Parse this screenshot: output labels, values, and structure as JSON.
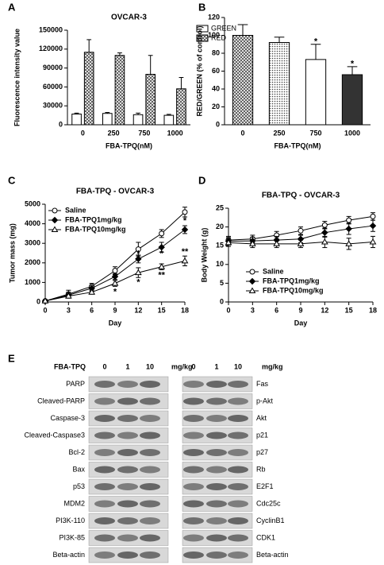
{
  "chart_data": [
    {
      "type": "bar",
      "panel_label": "A",
      "title": "OVCAR-3",
      "x_label": "FBA-TPQ(nM)",
      "y_label": "Fluorescence intensity value",
      "categories": [
        "0",
        "250",
        "750",
        "1000"
      ],
      "series": [
        {
          "name": "GREEN",
          "color": "#ffffff",
          "pattern": null,
          "values": [
            17000,
            18000,
            16000,
            15000
          ],
          "errors": [
            1500,
            1500,
            2500,
            1500
          ]
        },
        {
          "name": "RED",
          "color": "#ffffff",
          "pattern": "crosshatch",
          "values": [
            115000,
            110000,
            80000,
            57000
          ],
          "errors": [
            20000,
            4000,
            30000,
            18000
          ]
        }
      ],
      "ylim": [
        0,
        150000
      ],
      "yticks": [
        0,
        30000,
        60000,
        90000,
        120000,
        150000
      ],
      "legend": "right"
    },
    {
      "type": "bar",
      "panel_label": "B",
      "x_label": "FBA-TPQ(nM)",
      "y_label": "RED/GREEN (% of control)",
      "categories": [
        "0",
        "250",
        "750",
        "1000"
      ],
      "values": [
        100,
        92,
        73,
        56
      ],
      "errors": [
        12,
        6,
        17,
        9
      ],
      "colors": [
        "#ffffff",
        "#ffffff",
        "#ffffff",
        "#333333"
      ],
      "patterns": [
        "crosshatch",
        "dots",
        null,
        null
      ],
      "annotations": [
        {
          "text": "*",
          "x": "750",
          "y": 93
        },
        {
          "text": "*",
          "x": "1000",
          "y": 68
        }
      ],
      "ylim": [
        0,
        120
      ],
      "yticks": [
        0,
        20,
        40,
        60,
        80,
        100,
        120
      ]
    },
    {
      "type": "line",
      "panel_label": "C",
      "title": "FBA-TPQ - OVCAR-3",
      "x_label": "Day",
      "y_label": "Tumor mass (mg)",
      "x": [
        0,
        3,
        6,
        9,
        12,
        15,
        18
      ],
      "series": [
        {
          "name": "Saline",
          "color": "#000000",
          "marker": "circle",
          "filled": false,
          "values": [
            50,
            400,
            800,
            1600,
            2700,
            3500,
            4600
          ],
          "errors": [
            50,
            200,
            150,
            200,
            350,
            200,
            250
          ]
        },
        {
          "name": "FBA-TPQ1mg/kg",
          "color": "#000000",
          "marker": "diamond",
          "filled": true,
          "values": [
            50,
            350,
            700,
            1300,
            2200,
            2800,
            3700
          ],
          "errors": [
            30,
            150,
            150,
            150,
            200,
            250,
            200
          ]
        },
        {
          "name": "FBA-TPQ10mg/kg",
          "color": "#000000",
          "marker": "triangle",
          "filled": false,
          "values": [
            50,
            300,
            500,
            950,
            1500,
            1800,
            2100
          ],
          "errors": [
            30,
            100,
            100,
            150,
            250,
            150,
            250
          ]
        }
      ],
      "annotations": [
        {
          "text": "*",
          "x": 9,
          "y": 500
        },
        {
          "text": "*",
          "x": 12,
          "y": 2450
        },
        {
          "text": "*",
          "x": 12,
          "y": 1000
        },
        {
          "text": "*",
          "x": 15,
          "y": 2450
        },
        {
          "text": "**",
          "x": 15,
          "y": 1350
        },
        {
          "text": "*",
          "x": 18,
          "y": 4150
        },
        {
          "text": "**",
          "x": 18,
          "y": 2550
        }
      ],
      "xlim": [
        0,
        18
      ],
      "xticks": [
        0,
        3,
        6,
        9,
        12,
        15,
        18
      ],
      "ylim": [
        0,
        5000
      ],
      "yticks": [
        0,
        1000,
        2000,
        3000,
        4000,
        5000
      ],
      "legend": "upper left"
    },
    {
      "type": "line",
      "panel_label": "D",
      "title": "FBA-TPQ - OVCAR-3",
      "x_label": "Day",
      "y_label": "Body Weight (g)",
      "x": [
        0,
        3,
        6,
        9,
        12,
        15,
        18
      ],
      "series": [
        {
          "name": "Saline",
          "color": "#000000",
          "marker": "circle",
          "filled": false,
          "values": [
            16.5,
            16.8,
            17.8,
            19,
            20.5,
            21.8,
            22.8
          ],
          "errors": [
            1,
            1,
            1,
            1,
            1,
            1,
            1
          ]
        },
        {
          "name": "FBA-TPQ1mg/kg",
          "color": "#000000",
          "marker": "diamond",
          "filled": true,
          "values": [
            16.2,
            16.3,
            16.5,
            16.8,
            18.5,
            19.5,
            20.3
          ],
          "errors": [
            1,
            1,
            1,
            1,
            1.2,
            1.5,
            1.5
          ]
        },
        {
          "name": "FBA-TPQ10mg/kg",
          "color": "#000000",
          "marker": "triangle",
          "filled": false,
          "values": [
            15.8,
            15.5,
            15.5,
            15.5,
            16,
            15.5,
            16
          ],
          "errors": [
            1,
            1,
            1,
            1,
            1.5,
            1.5,
            1.5
          ]
        }
      ],
      "xlim": [
        0,
        18
      ],
      "xticks": [
        0,
        3,
        6,
        9,
        12,
        15,
        18
      ],
      "ylim": [
        0,
        25
      ],
      "yticks": [
        0,
        5,
        10,
        15,
        20,
        25
      ],
      "legend": "lower center"
    }
  ],
  "blot": {
    "panel_label": "E",
    "treatment": "FBA-TPQ",
    "doses": [
      "0",
      "1",
      "10"
    ],
    "unit": "mg/kg",
    "left_proteins": [
      "PARP",
      "Cleaved-PARP",
      "Caspase-3",
      "Cleaved-Caspase3",
      "Bcl-2",
      "Bax",
      "p53",
      "MDM2",
      "PI3K-110",
      "PI3K-85",
      "Beta-actin"
    ],
    "right_proteins": [
      "Fas",
      "p-Akt",
      "Akt",
      "p21",
      "p27",
      "Rb",
      "E2F1",
      "Cdc25c",
      "CyclinB1",
      "CDK1",
      "Beta-actin"
    ]
  }
}
